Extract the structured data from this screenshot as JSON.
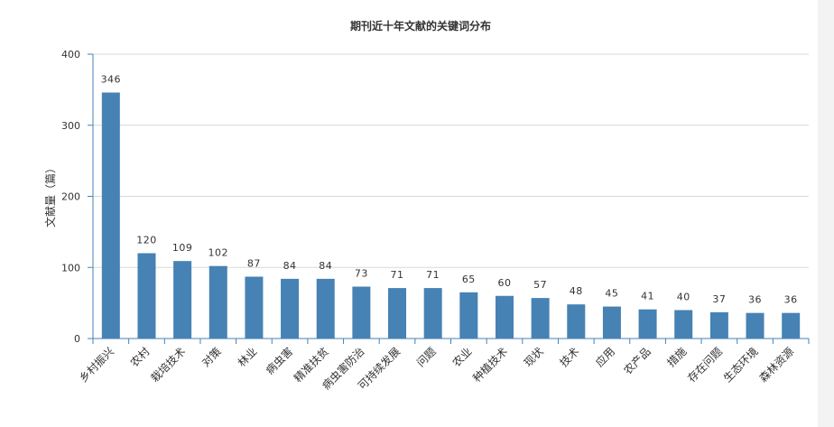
{
  "chart_data": {
    "type": "bar",
    "title": "期刊近十年文献的关键词分布",
    "xlabel": "",
    "ylabel": "文献量（篇）",
    "ylim": [
      0,
      400
    ],
    "yticks": [
      0,
      100,
      200,
      300,
      400
    ],
    "grid": true,
    "legend": "none",
    "categories": [
      "乡村振兴",
      "农村",
      "栽培技术",
      "对策",
      "林业",
      "病虫害",
      "精准扶贫",
      "病虫害防治",
      "可持续发展",
      "问题",
      "农业",
      "种植技术",
      "现状",
      "技术",
      "应用",
      "农产品",
      "措施",
      "存在问题",
      "生态环境",
      "森林资源"
    ],
    "values": [
      346,
      120,
      109,
      102,
      87,
      84,
      84,
      73,
      71,
      71,
      65,
      60,
      57,
      48,
      45,
      41,
      40,
      37,
      36,
      36
    ],
    "colors": {
      "bar": "#4682b4",
      "axis": "#4682b4",
      "grid": "#d9d9d9",
      "text": "#333333"
    }
  }
}
